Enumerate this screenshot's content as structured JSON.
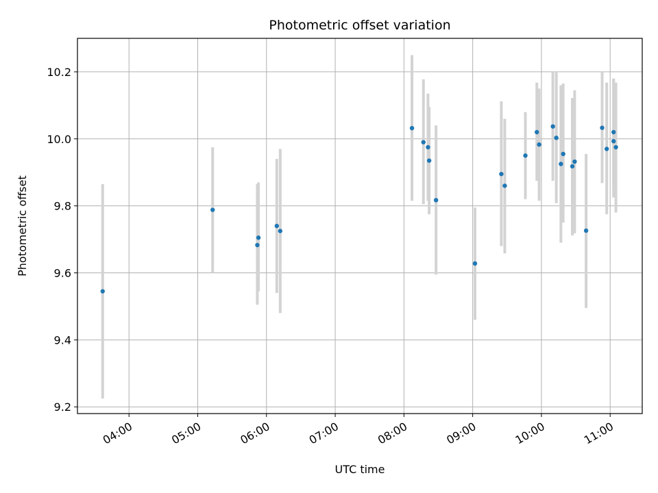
{
  "chart_data": {
    "type": "scatter",
    "title": "Photometric offset variation",
    "xlabel": "UTC time",
    "ylabel": "Photometric offset",
    "x_ticks": [
      "04:00",
      "05:00",
      "06:00",
      "07:00",
      "08:00",
      "09:00",
      "10:00",
      "11:00"
    ],
    "y_ticks": [
      "9.2",
      "9.4",
      "9.6",
      "9.8",
      "10.0",
      "10.2"
    ],
    "xlim": [
      "03:15",
      "11:28"
    ],
    "ylim": [
      9.18,
      10.3
    ],
    "grid": true,
    "colors": {
      "point": "#1f77b4",
      "errorbar": "#d3d3d3",
      "grid": "#b0b0b0"
    },
    "series": [
      {
        "points": [
          {
            "x": "03:37",
            "y": 9.545,
            "ylo": 9.225,
            "yhi": 9.865
          },
          {
            "x": "05:13",
            "y": 9.788,
            "ylo": 9.6,
            "yhi": 9.975
          },
          {
            "x": "05:52",
            "y": 9.683,
            "ylo": 9.505,
            "yhi": 9.865
          },
          {
            "x": "05:53",
            "y": 9.705,
            "ylo": 9.545,
            "yhi": 9.87
          },
          {
            "x": "06:09",
            "y": 9.74,
            "ylo": 9.54,
            "yhi": 9.94
          },
          {
            "x": "06:12",
            "y": 9.725,
            "ylo": 9.48,
            "yhi": 9.97
          },
          {
            "x": "08:07",
            "y": 10.032,
            "ylo": 9.815,
            "yhi": 10.25
          },
          {
            "x": "08:17",
            "y": 9.99,
            "ylo": 9.805,
            "yhi": 10.178
          },
          {
            "x": "08:21",
            "y": 9.975,
            "ylo": 9.815,
            "yhi": 10.135
          },
          {
            "x": "08:22",
            "y": 9.935,
            "ylo": 9.775,
            "yhi": 10.095
          },
          {
            "x": "08:28",
            "y": 9.817,
            "ylo": 9.595,
            "yhi": 10.04
          },
          {
            "x": "09:02",
            "y": 9.628,
            "ylo": 9.46,
            "yhi": 9.795
          },
          {
            "x": "09:25",
            "y": 9.895,
            "ylo": 9.68,
            "yhi": 10.112
          },
          {
            "x": "09:28",
            "y": 9.86,
            "ylo": 9.658,
            "yhi": 10.06
          },
          {
            "x": "09:46",
            "y": 9.95,
            "ylo": 9.82,
            "yhi": 10.08
          },
          {
            "x": "09:56",
            "y": 10.02,
            "ylo": 9.875,
            "yhi": 10.168
          },
          {
            "x": "09:58",
            "y": 9.983,
            "ylo": 9.815,
            "yhi": 10.15
          },
          {
            "x": "10:10",
            "y": 10.037,
            "ylo": 9.875,
            "yhi": 10.2
          },
          {
            "x": "10:13",
            "y": 10.003,
            "ylo": 9.808,
            "yhi": 10.2
          },
          {
            "x": "10:17",
            "y": 9.925,
            "ylo": 9.69,
            "yhi": 10.16
          },
          {
            "x": "10:19",
            "y": 9.955,
            "ylo": 9.75,
            "yhi": 10.165
          },
          {
            "x": "10:27",
            "y": 9.918,
            "ylo": 9.712,
            "yhi": 10.122
          },
          {
            "x": "10:29",
            "y": 9.932,
            "ylo": 9.718,
            "yhi": 10.145
          },
          {
            "x": "10:39",
            "y": 9.726,
            "ylo": 9.495,
            "yhi": 9.955
          },
          {
            "x": "10:53",
            "y": 10.033,
            "ylo": 9.868,
            "yhi": 10.2
          },
          {
            "x": "10:57",
            "y": 9.97,
            "ylo": 9.775,
            "yhi": 10.168
          },
          {
            "x": "11:03",
            "y": 9.993,
            "ylo": 9.825,
            "yhi": 10.18
          },
          {
            "x": "11:03",
            "y": 10.02,
            "ylo": 9.86,
            "yhi": 10.18
          },
          {
            "x": "11:05",
            "y": 9.975,
            "ylo": 9.78,
            "yhi": 10.168
          }
        ]
      }
    ]
  }
}
